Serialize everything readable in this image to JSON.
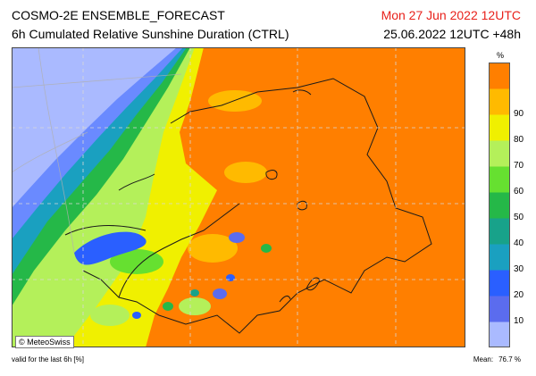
{
  "header": {
    "model_title": "COSMO-2E ENSEMBLE_FORECAST",
    "parameter": "6h Cumulated Relative Sunshine Duration (CTRL)",
    "valid_date": "Mon 27 Jun 2022 12UTC",
    "run_info": "25.06.2022 12UTC +48h"
  },
  "legend": {
    "unit": "%",
    "ticks": [
      "10",
      "20",
      "30",
      "40",
      "50",
      "60",
      "70",
      "80",
      "90"
    ],
    "colors": [
      "#aabaff",
      "#5b6cee",
      "#2a5fff",
      "#1aa0c0",
      "#18a28a",
      "#25b848",
      "#66e030",
      "#b4f05a",
      "#f0f000",
      "#ffba00",
      "#ff7f00"
    ]
  },
  "map": {
    "copyright": "© MeteoSwiss",
    "lake_color": "#2a5fff",
    "land_color": "#ff7f00"
  },
  "footer": {
    "note": "valid for the last 6h [%]",
    "mean_label": "Mean:",
    "mean_value": "76.7 %"
  }
}
